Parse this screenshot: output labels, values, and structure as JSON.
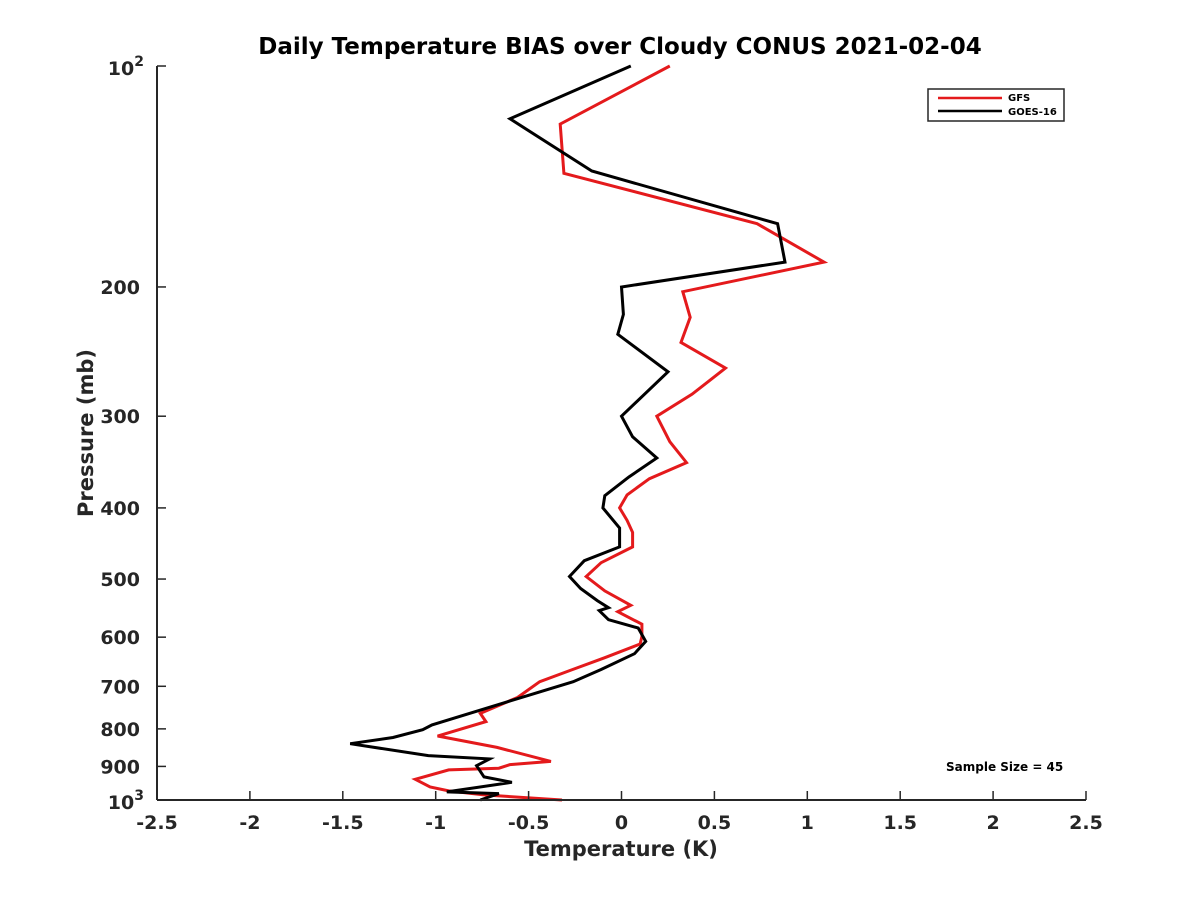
{
  "chart_data": {
    "type": "line",
    "title": "Daily Temperature BIAS over Cloudy CONUS 2021-02-04",
    "xlabel": "Temperature (K)",
    "ylabel": "Pressure (mb)",
    "xlim": [
      -2.5,
      2.5
    ],
    "ylim": [
      100,
      1000
    ],
    "y_scale": "log",
    "y_reversed": true,
    "grid": false,
    "legend_position": "top-right",
    "x_ticks": [
      "-2.5",
      "-2",
      "-1.5",
      "-1",
      "-0.5",
      "0",
      "0.5",
      "1",
      "1.5",
      "2",
      "2.5"
    ],
    "x_tick_values": [
      -2.5,
      -2,
      -1.5,
      -1,
      -0.5,
      0,
      0.5,
      1,
      1.5,
      2,
      2.5
    ],
    "y_ticks": [
      {
        "value": 100,
        "base": "10",
        "exp": "2"
      },
      {
        "value": 200,
        "label": "200"
      },
      {
        "value": 300,
        "label": "300"
      },
      {
        "value": 400,
        "label": "400"
      },
      {
        "value": 500,
        "label": "500"
      },
      {
        "value": 600,
        "label": "600"
      },
      {
        "value": 700,
        "label": "700"
      },
      {
        "value": 800,
        "label": "800"
      },
      {
        "value": 900,
        "label": "900"
      },
      {
        "value": 1000,
        "base": "10",
        "exp": "3"
      }
    ],
    "series": [
      {
        "name": "GFS",
        "color": "#e41a1c",
        "points": [
          [
            0.26,
            100
          ],
          [
            -0.33,
            120
          ],
          [
            -0.31,
            140
          ],
          [
            0.73,
            164
          ],
          [
            1.09,
            185
          ],
          [
            0.33,
            203
          ],
          [
            0.37,
            220
          ],
          [
            0.32,
            238
          ],
          [
            0.56,
            258
          ],
          [
            0.38,
            280
          ],
          [
            0.19,
            300
          ],
          [
            0.26,
            325
          ],
          [
            0.35,
            347
          ],
          [
            0.15,
            365
          ],
          [
            0.03,
            384
          ],
          [
            -0.01,
            400
          ],
          [
            0.03,
            416
          ],
          [
            0.06,
            432
          ],
          [
            0.06,
            452
          ],
          [
            -0.11,
            475
          ],
          [
            -0.19,
            496
          ],
          [
            -0.09,
            519
          ],
          [
            0.05,
            543
          ],
          [
            -0.02,
            554
          ],
          [
            0.11,
            576
          ],
          [
            0.11,
            599
          ],
          [
            0.1,
            613
          ],
          [
            -0.09,
            640
          ],
          [
            -0.27,
            665
          ],
          [
            -0.44,
            690
          ],
          [
            -0.56,
            725
          ],
          [
            -0.76,
            762
          ],
          [
            -0.73,
            782
          ],
          [
            -0.99,
            818
          ],
          [
            -0.67,
            848
          ],
          [
            -0.38,
            886
          ],
          [
            -0.6,
            895
          ],
          [
            -0.66,
            905
          ],
          [
            -0.93,
            910
          ],
          [
            -1.11,
            937
          ],
          [
            -1.03,
            960
          ],
          [
            -0.93,
            972
          ],
          [
            -0.74,
            984
          ],
          [
            -0.32,
            1000
          ]
        ]
      },
      {
        "name": "GOES-16",
        "color": "#000000",
        "points": [
          [
            0.05,
            100
          ],
          [
            -0.6,
            118
          ],
          [
            -0.16,
            139
          ],
          [
            0.84,
            164
          ],
          [
            0.88,
            185
          ],
          [
            0.0,
            200
          ],
          [
            0.01,
            218
          ],
          [
            -0.02,
            232
          ],
          [
            0.25,
            261
          ],
          [
            0.0,
            300
          ],
          [
            0.06,
            320
          ],
          [
            0.19,
            342
          ],
          [
            0.04,
            363
          ],
          [
            -0.09,
            385
          ],
          [
            -0.1,
            400
          ],
          [
            -0.01,
            426
          ],
          [
            -0.01,
            452
          ],
          [
            -0.2,
            472
          ],
          [
            -0.28,
            496
          ],
          [
            -0.22,
            515
          ],
          [
            -0.13,
            535
          ],
          [
            -0.07,
            547
          ],
          [
            -0.12,
            552
          ],
          [
            -0.07,
            568
          ],
          [
            0.09,
            583
          ],
          [
            0.13,
            608
          ],
          [
            0.07,
            632
          ],
          [
            -0.11,
            664
          ],
          [
            -0.26,
            690
          ],
          [
            -0.5,
            720
          ],
          [
            -1.02,
            790
          ],
          [
            -1.07,
            802
          ],
          [
            -1.23,
            822
          ],
          [
            -1.46,
            838
          ],
          [
            -1.04,
            870
          ],
          [
            -0.71,
            879
          ],
          [
            -0.78,
            898
          ],
          [
            -0.74,
            930
          ],
          [
            -0.59,
            946
          ],
          [
            -0.94,
            975
          ],
          [
            -0.66,
            980
          ],
          [
            -0.76,
            1000
          ]
        ]
      }
    ],
    "annotations": [
      "Sample Size = 45"
    ]
  }
}
